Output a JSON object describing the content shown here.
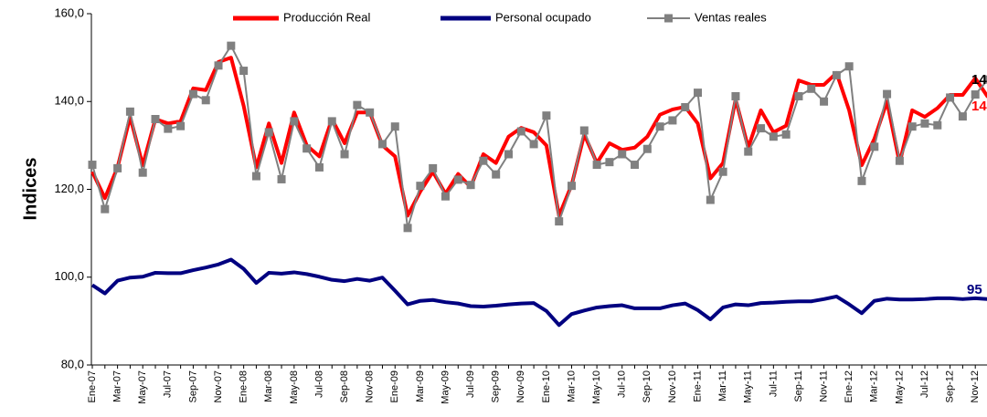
{
  "chart_data": {
    "type": "line",
    "y_label": "Indices",
    "categories": [
      "Ene-07",
      null,
      "Mar-07",
      null,
      "May-07",
      null,
      "Jul-07",
      null,
      "Sep-07",
      null,
      "Nov-07",
      null,
      "Ene-08",
      null,
      "Mar-08",
      null,
      "May-08",
      null,
      "Jul-08",
      null,
      "Sep-08",
      null,
      "Nov-08",
      null,
      "Ene-09",
      null,
      "Mar-09",
      null,
      "May-09",
      null,
      "Jul-09",
      null,
      "Sep-09",
      null,
      "Nov-09",
      null,
      "Ene-10",
      null,
      "Mar-10",
      null,
      "May-10",
      null,
      "Jul-10",
      null,
      "Sep-10",
      null,
      "Nov-10",
      null,
      "Ene-11",
      null,
      "Mar-11",
      null,
      "May-11",
      null,
      "Jul-11",
      null,
      "Sep-11",
      null,
      "Nov-11",
      null,
      "Ene-12",
      null,
      "Mar-12",
      null,
      "May-12",
      null,
      "Jul-12",
      null,
      "Sep-12",
      null,
      "Nov-12",
      null
    ],
    "series": [
      {
        "name": "Producción Real",
        "color": "#ff0000",
        "values": [
          124,
          118,
          125,
          136.5,
          125.5,
          136,
          135,
          135.5,
          143,
          142.6,
          149,
          150,
          139,
          125,
          135,
          126,
          137.5,
          130,
          127.5,
          136,
          130.5,
          137.5,
          137.5,
          130,
          127.5,
          114,
          119.5,
          124,
          119,
          123.5,
          120.5,
          128,
          126,
          132,
          134,
          133,
          130,
          114,
          121,
          132.5,
          126,
          130.5,
          129,
          129.5,
          132,
          137,
          138.2,
          138.8,
          135,
          122.5,
          126,
          140.5,
          129.5,
          138,
          133,
          134.5,
          144.8,
          143.8,
          143.8,
          146.5,
          138,
          125.5,
          131.5,
          140,
          126,
          138,
          136.5,
          138.5,
          141.5,
          141.5,
          145.3,
          141
        ]
      },
      {
        "name": "Personal ocupado",
        "color": "#000080",
        "values": [
          98.2,
          96.3,
          99.2,
          99.9,
          100.1,
          101,
          100.9,
          100.9,
          101.6,
          102.2,
          102.9,
          104,
          101.9,
          98.7,
          101,
          100.8,
          101.1,
          100.7,
          100.1,
          99.4,
          99.1,
          99.6,
          99.2,
          99.9,
          96.9,
          93.8,
          94.6,
          94.8,
          94.3,
          94,
          93.4,
          93.3,
          93.5,
          93.8,
          94,
          94.1,
          92.3,
          89.1,
          91.6,
          92.4,
          93.1,
          93.4,
          93.6,
          92.9,
          92.9,
          92.9,
          93.6,
          94,
          92.5,
          90.4,
          93.1,
          93.8,
          93.6,
          94.1,
          94.2,
          94.4,
          94.5,
          94.5,
          95,
          95.6,
          93.8,
          91.8,
          94.6,
          95.1,
          94.9,
          94.9,
          95,
          95.2,
          95.2,
          95,
          95.2,
          95
        ]
      },
      {
        "name": "Ventas reales",
        "color": "#808080",
        "marker": "square",
        "values": [
          125.6,
          115.5,
          124.8,
          137.7,
          123.8,
          136,
          133.8,
          134.4,
          141.7,
          140.3,
          148.2,
          152.7,
          147,
          123,
          133,
          122.3,
          135.5,
          129.3,
          125,
          135.5,
          128,
          139.2,
          137.5,
          130.3,
          134.3,
          111.2,
          120.8,
          124.8,
          118.4,
          122.2,
          121,
          126.5,
          123.4,
          128,
          133.2,
          130.3,
          136.8,
          112.7,
          120.8,
          133.4,
          125.6,
          126.2,
          128,
          125.6,
          129.2,
          134.3,
          135.7,
          138.7,
          142,
          117.6,
          124,
          141.2,
          128.6,
          133.9,
          132,
          132.5,
          141.2,
          142.9,
          140,
          146,
          148,
          121.9,
          129.7,
          141.7,
          126.5,
          134.3,
          135,
          134.6,
          140.9,
          136.6,
          141.6,
          145
        ]
      }
    ],
    "ylim": [
      80,
      160
    ],
    "yticks": [
      {
        "value": 80,
        "label": "80,0"
      },
      {
        "value": 100,
        "label": "100,0"
      },
      {
        "value": 120,
        "label": "120,0"
      },
      {
        "value": 140,
        "label": "140,0"
      },
      {
        "value": 160,
        "label": "160,0"
      }
    ],
    "grid": false,
    "legend": "top"
  }
}
